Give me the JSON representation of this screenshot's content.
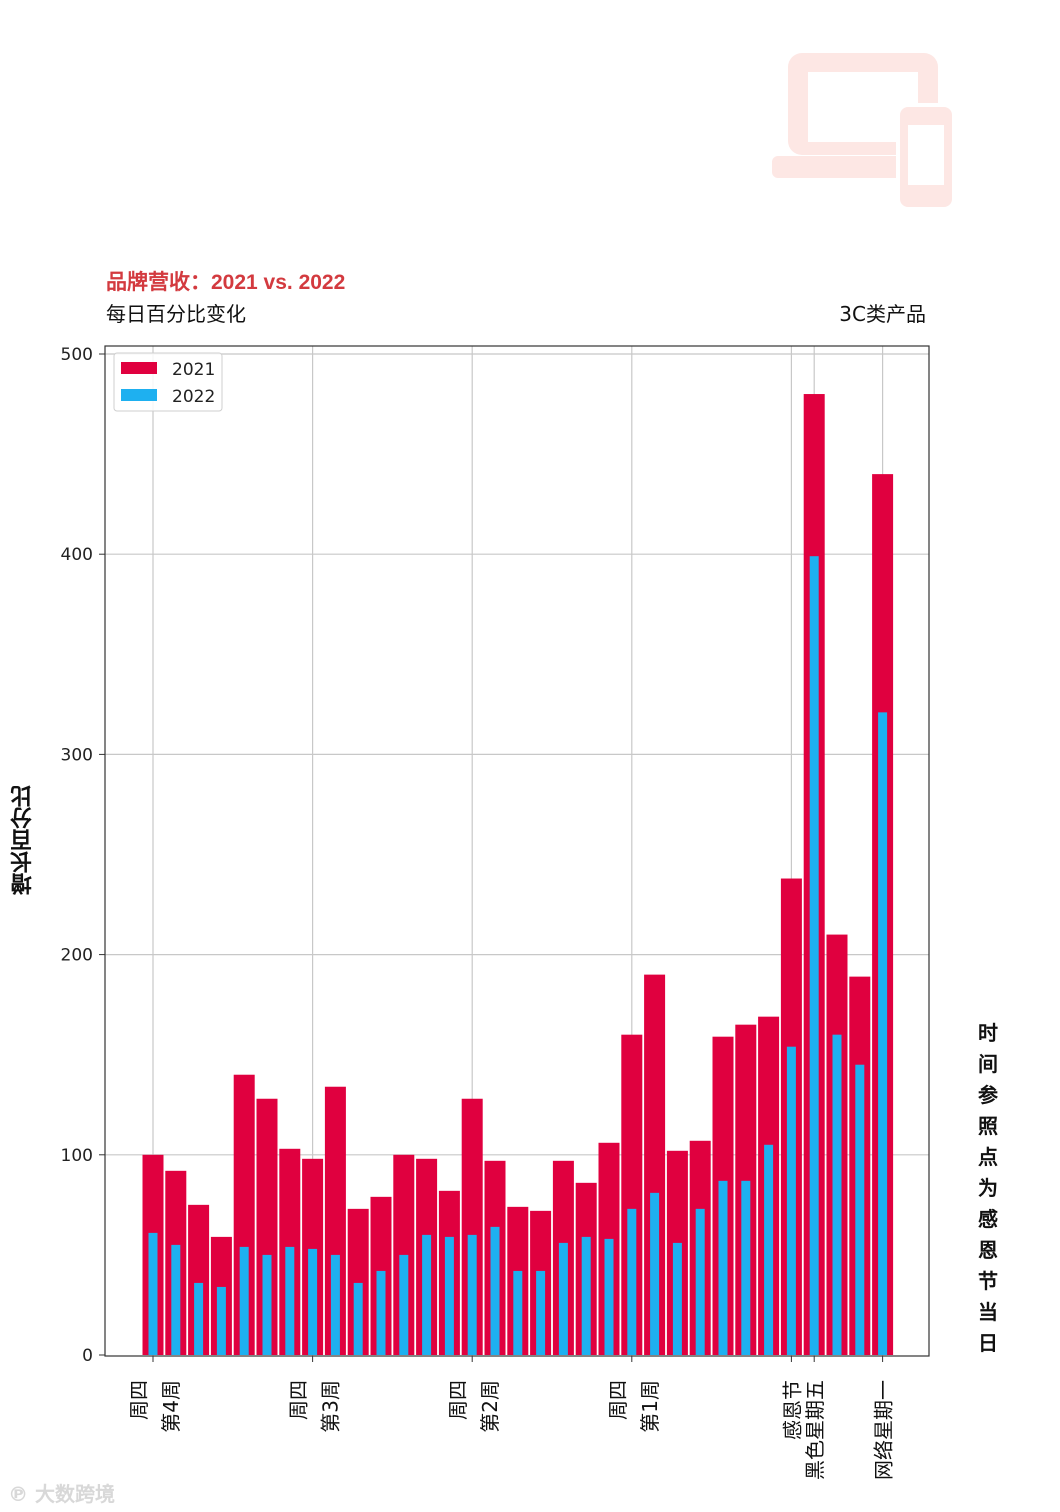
{
  "header": {
    "title": "品牌营收：2021 vs. 2022",
    "subtitle": "每日百分比变化",
    "category": "3C类产品"
  },
  "side_note": "时间参照点为感恩节当日",
  "watermark": "大数跨境",
  "colors": {
    "series_2021": "#e0003f",
    "series_2022": "#1eb0f0",
    "title_red": "#d33a3f",
    "grid": "#c8c8c8"
  },
  "chart_data": {
    "type": "bar",
    "ylabel": "增长百分比",
    "ylim": [
      0,
      500
    ],
    "yticks": [
      0,
      100,
      200,
      300,
      400,
      500
    ],
    "grid": true,
    "legend_position": "top-left",
    "series": [
      {
        "name": "2021",
        "values": [
          100,
          92,
          75,
          59,
          140,
          128,
          103,
          98,
          134,
          73,
          79,
          100,
          98,
          82,
          128,
          97,
          74,
          72,
          97,
          86,
          106,
          160,
          190,
          102,
          107,
          159,
          165,
          169,
          238,
          480,
          210,
          189,
          440
        ]
      },
      {
        "name": "2022",
        "values": [
          61,
          55,
          36,
          34,
          54,
          50,
          54,
          53,
          50,
          36,
          42,
          50,
          60,
          59,
          60,
          64,
          42,
          42,
          56,
          59,
          58,
          73,
          81,
          56,
          73,
          87,
          87,
          105,
          154,
          399,
          160,
          145,
          321
        ]
      }
    ],
    "xticks": [
      {
        "index": 0,
        "lines": [
          "周四",
          "第4周"
        ]
      },
      {
        "index": 7,
        "lines": [
          "周四",
          "第3周"
        ]
      },
      {
        "index": 14,
        "lines": [
          "周四",
          "第2周"
        ]
      },
      {
        "index": 21,
        "lines": [
          "周四",
          "第1周"
        ]
      },
      {
        "index": 28,
        "lines": [
          "感恩节"
        ]
      },
      {
        "index": 29,
        "lines": [
          "黑色星期五"
        ]
      },
      {
        "index": 32,
        "lines": [
          "网络星期一"
        ]
      }
    ]
  }
}
